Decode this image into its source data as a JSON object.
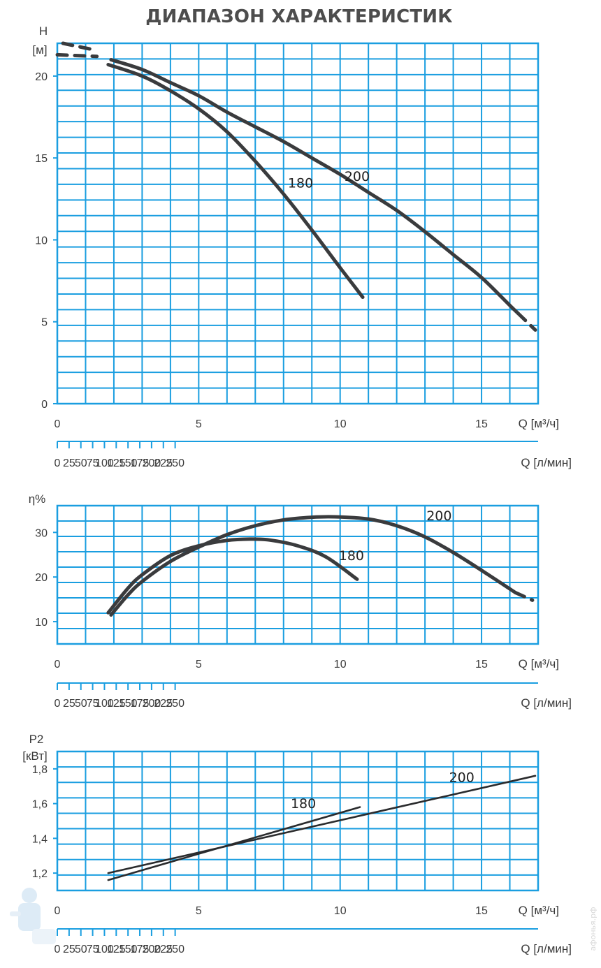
{
  "title": "ДИАПАЗОН ХАРАКТЕРИСТИК",
  "watermark": "афонья.рф",
  "colors": {
    "grid": "#1a9ee0",
    "curve": "#3a3b3d"
  },
  "axes_q": {
    "q_m3h": {
      "label": "Q [м³/ч]",
      "ticks": [
        0,
        5,
        10,
        15
      ],
      "range": [
        0,
        17
      ]
    },
    "q_lmin": {
      "label": "Q [л/мин]",
      "ticks": [
        0,
        25,
        50,
        75,
        100,
        125,
        150,
        175,
        200,
        225,
        250
      ]
    }
  },
  "chart_data": [
    {
      "type": "line",
      "ylabel": "H",
      "yunit": "[м]",
      "ylim": [
        0,
        22
      ],
      "yticks": [
        0,
        5,
        10,
        15,
        20
      ],
      "grid": true,
      "series": [
        {
          "name": "180",
          "x": [
            1.8,
            3,
            4,
            5,
            6,
            7,
            8,
            9,
            10,
            10.8
          ],
          "y": [
            20.7,
            20.0,
            19.1,
            18.0,
            16.6,
            14.8,
            12.8,
            10.6,
            8.3,
            6.5
          ],
          "dashed_x": [
            0,
            1.4
          ],
          "dashed_y": [
            21.3,
            21.2
          ]
        },
        {
          "name": "200",
          "x": [
            1.9,
            3,
            4,
            5,
            6,
            7,
            8,
            9,
            10,
            11,
            12,
            13,
            14,
            15,
            16,
            16.3
          ],
          "y": [
            21.0,
            20.4,
            19.6,
            18.8,
            17.8,
            16.9,
            16.0,
            15.0,
            14.0,
            12.9,
            11.8,
            10.5,
            9.1,
            7.7,
            6.0,
            5.5
          ],
          "dashed_x": [
            0.2,
            1.3,
            16.3,
            16.9
          ],
          "dashed_y": [
            22.0,
            21.6,
            5.5,
            4.5
          ]
        }
      ],
      "annotations": [
        "180",
        "200"
      ]
    },
    {
      "type": "line",
      "ylabel": "η%",
      "ylim": [
        5,
        36
      ],
      "yticks": [
        10,
        20,
        30
      ],
      "grid": true,
      "series": [
        {
          "name": "180",
          "x": [
            1.8,
            2.5,
            3,
            4,
            5,
            6,
            6.8,
            7.5,
            8.5,
            9.5,
            10.6
          ],
          "y": [
            12.0,
            17.5,
            20.5,
            24.8,
            27.0,
            28.2,
            28.5,
            28.3,
            27.0,
            24.5,
            19.5
          ]
        },
        {
          "name": "200",
          "x": [
            1.9,
            2.5,
            3,
            4,
            5,
            6,
            7,
            8,
            9,
            9.8,
            11,
            12,
            13,
            14,
            15,
            16.2
          ],
          "y": [
            11.5,
            16.0,
            19.0,
            23.5,
            26.7,
            29.5,
            31.5,
            32.8,
            33.4,
            33.5,
            33.0,
            31.5,
            29.0,
            25.5,
            21.5,
            16.5
          ],
          "dashed_x": [
            16.2,
            16.8
          ],
          "dashed_y": [
            16.5,
            14.8
          ]
        }
      ],
      "annotations": [
        "180",
        "200"
      ]
    },
    {
      "type": "line",
      "ylabel": "P2",
      "yunit": "[кВт]",
      "ylim": [
        1.1,
        1.9
      ],
      "yticks": [
        "1,2",
        "1,4",
        "1,6",
        "1,8"
      ],
      "yticks_values": [
        1.2,
        1.4,
        1.6,
        1.8
      ],
      "grid": true,
      "series": [
        {
          "name": "180",
          "x": [
            1.8,
            10.7
          ],
          "y": [
            1.16,
            1.58
          ]
        },
        {
          "name": "200",
          "x": [
            1.8,
            16.9
          ],
          "y": [
            1.2,
            1.76
          ]
        }
      ],
      "annotations": [
        "180",
        "200"
      ]
    }
  ]
}
